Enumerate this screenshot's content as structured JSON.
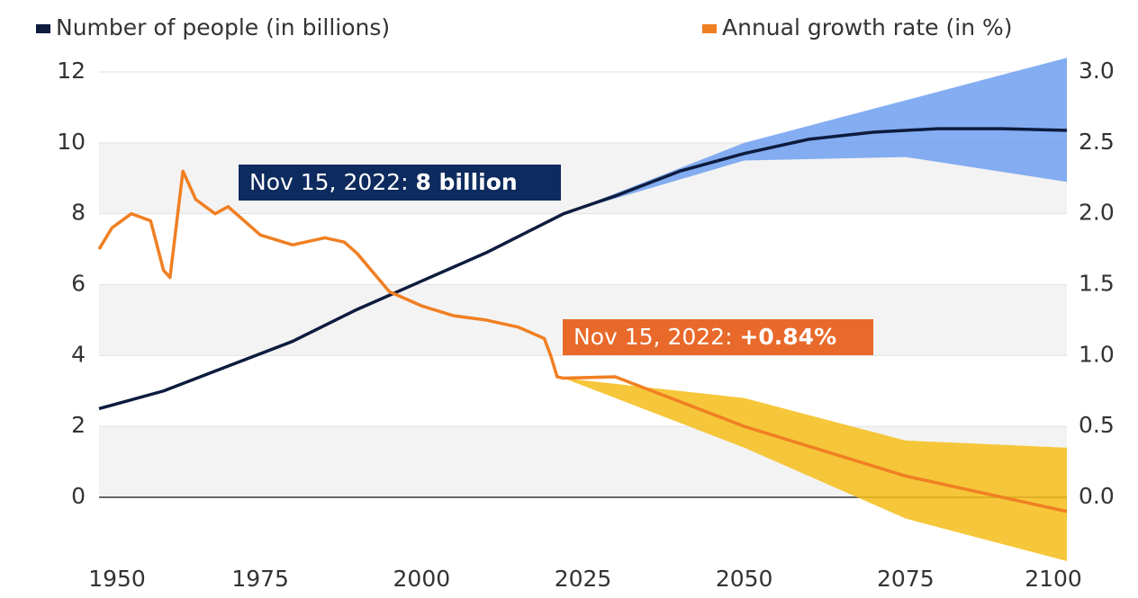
{
  "chart_data": {
    "type": "line",
    "legend": "top",
    "grid": true,
    "xlim": [
      1950,
      2100
    ],
    "xticks": [
      1950,
      1975,
      2000,
      2025,
      2050,
      2075,
      2100
    ],
    "ylim": [
      0,
      12
    ],
    "yticks": [
      0,
      2,
      4,
      6,
      8,
      10,
      12
    ],
    "y2lim": [
      0,
      3
    ],
    "y2ticks": [
      {
        "value": 0,
        "label": "0.0"
      },
      0.5,
      {
        "value": 1,
        "label": "1.0"
      },
      1.5,
      {
        "value": 2,
        "label": "2.0"
      },
      2.5,
      {
        "value": 3,
        "label": "3.0"
      }
    ],
    "series": [
      {
        "name": "Number of people (in billions)",
        "color": "#0d1b3e",
        "axis": "y",
        "x": [
          1950,
          1960,
          1970,
          1980,
          1990,
          2000,
          2010,
          2022,
          2030,
          2040,
          2050,
          2060,
          2070,
          2080,
          2090,
          2100
        ],
        "values": [
          2.5,
          3.0,
          3.7,
          4.4,
          5.3,
          6.1,
          6.9,
          8.0,
          8.5,
          9.2,
          9.7,
          10.1,
          10.3,
          10.4,
          10.4,
          10.35
        ]
      },
      {
        "name": "Annual growth rate (in %)",
        "color": "#f07f22",
        "axis": "y2",
        "x": [
          1950,
          1952,
          1955,
          1958,
          1960,
          1961,
          1963,
          1965,
          1968,
          1970,
          1975,
          1980,
          1985,
          1988,
          1990,
          1995,
          2000,
          2005,
          2010,
          2015,
          2019,
          2020,
          2021,
          2022,
          2030,
          2050,
          2075,
          2100
        ],
        "values": [
          1.75,
          1.9,
          2.0,
          1.95,
          1.6,
          1.55,
          2.3,
          2.1,
          2.0,
          2.05,
          1.85,
          1.78,
          1.83,
          1.8,
          1.72,
          1.45,
          1.35,
          1.28,
          1.25,
          1.2,
          1.12,
          1.0,
          0.85,
          0.84,
          0.85,
          0.5,
          0.15,
          -0.1
        ]
      }
    ],
    "bands": [
      {
        "color": "#6f9ff0",
        "axis": "y",
        "x": [
          2022,
          2050,
          2075,
          2100
        ],
        "lower": [
          8.0,
          9.5,
          9.6,
          8.9
        ],
        "upper": [
          8.0,
          10.0,
          11.2,
          12.4
        ]
      },
      {
        "color": "#f5bd17",
        "axis": "y2",
        "x": [
          2022,
          2050,
          2075,
          2100
        ],
        "lower": [
          0.84,
          0.35,
          -0.15,
          -0.45
        ],
        "upper": [
          0.84,
          0.7,
          0.4,
          0.35
        ]
      }
    ],
    "annotations": [
      {
        "text": "Nov 15, 2022: ",
        "bold": "8 billion"
      },
      {
        "text": "Nov 15, 2022: ",
        "bold": "+0.84%"
      }
    ]
  }
}
